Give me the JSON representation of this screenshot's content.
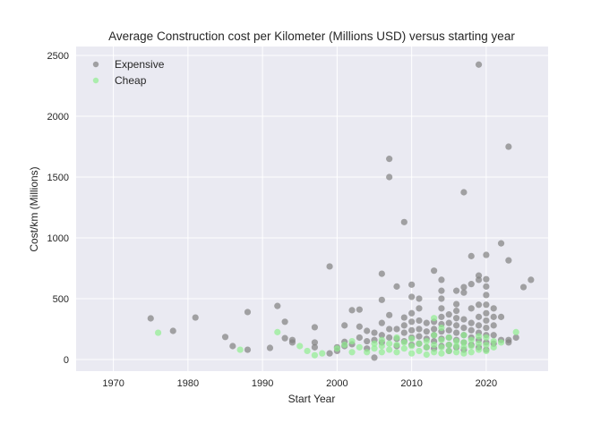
{
  "chart_data": {
    "type": "scatter",
    "title": "Average Construction cost per Kilometer (Millions USD) versus starting year",
    "xlabel": "Start Year",
    "ylabel": "Cost/km (Millions)",
    "xlim": [
      1965,
      2028.3
    ],
    "ylim": [
      -96,
      2574
    ],
    "xticks": [
      1970,
      1980,
      1990,
      2000,
      2010,
      2020
    ],
    "yticks": [
      0,
      500,
      1000,
      1500,
      2000,
      2500
    ],
    "grid": true,
    "legend_position": "top-left",
    "background": "#eaeaf2",
    "series": [
      {
        "name": "Expensive",
        "color": "#808080",
        "points": [
          [
            1975,
            338
          ],
          [
            1978,
            235
          ],
          [
            1981,
            345
          ],
          [
            1985,
            185
          ],
          [
            1986,
            110
          ],
          [
            1988,
            390
          ],
          [
            1988,
            80
          ],
          [
            1991,
            95
          ],
          [
            1992,
            440
          ],
          [
            1993,
            310
          ],
          [
            1993,
            175
          ],
          [
            1994,
            160
          ],
          [
            1994,
            140
          ],
          [
            1997,
            265
          ],
          [
            1997,
            140
          ],
          [
            1997,
            100
          ],
          [
            1999,
            765
          ],
          [
            1999,
            50
          ],
          [
            2000,
            100
          ],
          [
            2000,
            70
          ],
          [
            2001,
            280
          ],
          [
            2001,
            145
          ],
          [
            2001,
            110
          ],
          [
            2002,
            405
          ],
          [
            2002,
            125
          ],
          [
            2003,
            410
          ],
          [
            2003,
            270
          ],
          [
            2003,
            180
          ],
          [
            2004,
            235
          ],
          [
            2004,
            90
          ],
          [
            2004,
            150
          ],
          [
            2005,
            15
          ],
          [
            2005,
            160
          ],
          [
            2005,
            220
          ],
          [
            2006,
            705
          ],
          [
            2006,
            490
          ],
          [
            2006,
            300
          ],
          [
            2006,
            200
          ],
          [
            2006,
            140
          ],
          [
            2007,
            1650
          ],
          [
            2007,
            1500
          ],
          [
            2007,
            365
          ],
          [
            2007,
            250
          ],
          [
            2007,
            180
          ],
          [
            2008,
            600
          ],
          [
            2008,
            250
          ],
          [
            2008,
            170
          ],
          [
            2008,
            110
          ],
          [
            2009,
            1130
          ],
          [
            2009,
            345
          ],
          [
            2009,
            280
          ],
          [
            2009,
            220
          ],
          [
            2009,
            150
          ],
          [
            2010,
            615
          ],
          [
            2010,
            515
          ],
          [
            2010,
            380
          ],
          [
            2010,
            310
          ],
          [
            2010,
            240
          ],
          [
            2010,
            180
          ],
          [
            2010,
            120
          ],
          [
            2011,
            500
          ],
          [
            2011,
            420
          ],
          [
            2011,
            320
          ],
          [
            2011,
            250
          ],
          [
            2011,
            190
          ],
          [
            2011,
            130
          ],
          [
            2012,
            300
          ],
          [
            2012,
            230
          ],
          [
            2012,
            170
          ],
          [
            2012,
            100
          ],
          [
            2013,
            730
          ],
          [
            2013,
            310
          ],
          [
            2013,
            250
          ],
          [
            2013,
            200
          ],
          [
            2013,
            150
          ],
          [
            2013,
            90
          ],
          [
            2014,
            655
          ],
          [
            2014,
            565
          ],
          [
            2014,
            500
          ],
          [
            2014,
            420
          ],
          [
            2014,
            350
          ],
          [
            2014,
            290
          ],
          [
            2014,
            230
          ],
          [
            2014,
            170
          ],
          [
            2014,
            110
          ],
          [
            2015,
            370
          ],
          [
            2015,
            300
          ],
          [
            2015,
            240
          ],
          [
            2015,
            180
          ],
          [
            2015,
            120
          ],
          [
            2015,
            70
          ],
          [
            2016,
            565
          ],
          [
            2016,
            455
          ],
          [
            2016,
            400
          ],
          [
            2016,
            340
          ],
          [
            2016,
            280
          ],
          [
            2016,
            220
          ],
          [
            2016,
            160
          ],
          [
            2016,
            100
          ],
          [
            2017,
            1375
          ],
          [
            2017,
            595
          ],
          [
            2017,
            550
          ],
          [
            2017,
            330
          ],
          [
            2017,
            260
          ],
          [
            2017,
            200
          ],
          [
            2017,
            140
          ],
          [
            2017,
            80
          ],
          [
            2018,
            850
          ],
          [
            2018,
            620
          ],
          [
            2018,
            420
          ],
          [
            2018,
            300
          ],
          [
            2018,
            240
          ],
          [
            2018,
            180
          ],
          [
            2018,
            120
          ],
          [
            2019,
            2425
          ],
          [
            2019,
            690
          ],
          [
            2019,
            655
          ],
          [
            2019,
            450
          ],
          [
            2019,
            350
          ],
          [
            2019,
            280
          ],
          [
            2019,
            220
          ],
          [
            2019,
            160
          ],
          [
            2019,
            100
          ],
          [
            2020,
            860
          ],
          [
            2020,
            660
          ],
          [
            2020,
            600
          ],
          [
            2020,
            530
          ],
          [
            2020,
            450
          ],
          [
            2020,
            380
          ],
          [
            2020,
            320
          ],
          [
            2020,
            260
          ],
          [
            2020,
            200
          ],
          [
            2020,
            140
          ],
          [
            2020,
            80
          ],
          [
            2021,
            420
          ],
          [
            2021,
            350
          ],
          [
            2021,
            280
          ],
          [
            2021,
            200
          ],
          [
            2021,
            130
          ],
          [
            2022,
            955
          ],
          [
            2022,
            160
          ],
          [
            2022,
            350
          ],
          [
            2023,
            1750
          ],
          [
            2023,
            815
          ],
          [
            2023,
            160
          ],
          [
            2023,
            140
          ],
          [
            2024,
            180
          ],
          [
            2025,
            595
          ],
          [
            2026,
            655
          ]
        ]
      },
      {
        "name": "Cheap",
        "color": "#90ee90",
        "points": [
          [
            1976,
            220
          ],
          [
            1987,
            80
          ],
          [
            1992,
            225
          ],
          [
            1995,
            110
          ],
          [
            1996,
            70
          ],
          [
            1997,
            35
          ],
          [
            1998,
            50
          ],
          [
            2000,
            90
          ],
          [
            2001,
            120
          ],
          [
            2002,
            60
          ],
          [
            2002,
            150
          ],
          [
            2003,
            100
          ],
          [
            2004,
            60
          ],
          [
            2005,
            90
          ],
          [
            2005,
            130
          ],
          [
            2006,
            60
          ],
          [
            2006,
            110
          ],
          [
            2006,
            160
          ],
          [
            2007,
            80
          ],
          [
            2007,
            130
          ],
          [
            2008,
            60
          ],
          [
            2008,
            120
          ],
          [
            2008,
            180
          ],
          [
            2009,
            90
          ],
          [
            2009,
            140
          ],
          [
            2010,
            50
          ],
          [
            2010,
            110
          ],
          [
            2010,
            170
          ],
          [
            2011,
            70
          ],
          [
            2011,
            130
          ],
          [
            2012,
            40
          ],
          [
            2012,
            100
          ],
          [
            2012,
            150
          ],
          [
            2013,
            60
          ],
          [
            2013,
            120
          ],
          [
            2013,
            200
          ],
          [
            2013,
            340
          ],
          [
            2014,
            50
          ],
          [
            2014,
            100
          ],
          [
            2014,
            160
          ],
          [
            2014,
            260
          ],
          [
            2015,
            70
          ],
          [
            2015,
            120
          ],
          [
            2015,
            180
          ],
          [
            2016,
            60
          ],
          [
            2016,
            110
          ],
          [
            2016,
            150
          ],
          [
            2017,
            50
          ],
          [
            2017,
            100
          ],
          [
            2017,
            140
          ],
          [
            2017,
            200
          ],
          [
            2018,
            60
          ],
          [
            2018,
            110
          ],
          [
            2018,
            160
          ],
          [
            2019,
            80
          ],
          [
            2019,
            130
          ],
          [
            2019,
            190
          ],
          [
            2020,
            70
          ],
          [
            2020,
            120
          ],
          [
            2020,
            180
          ],
          [
            2021,
            100
          ],
          [
            2021,
            150
          ],
          [
            2022,
            140
          ],
          [
            2024,
            225
          ]
        ]
      }
    ]
  }
}
